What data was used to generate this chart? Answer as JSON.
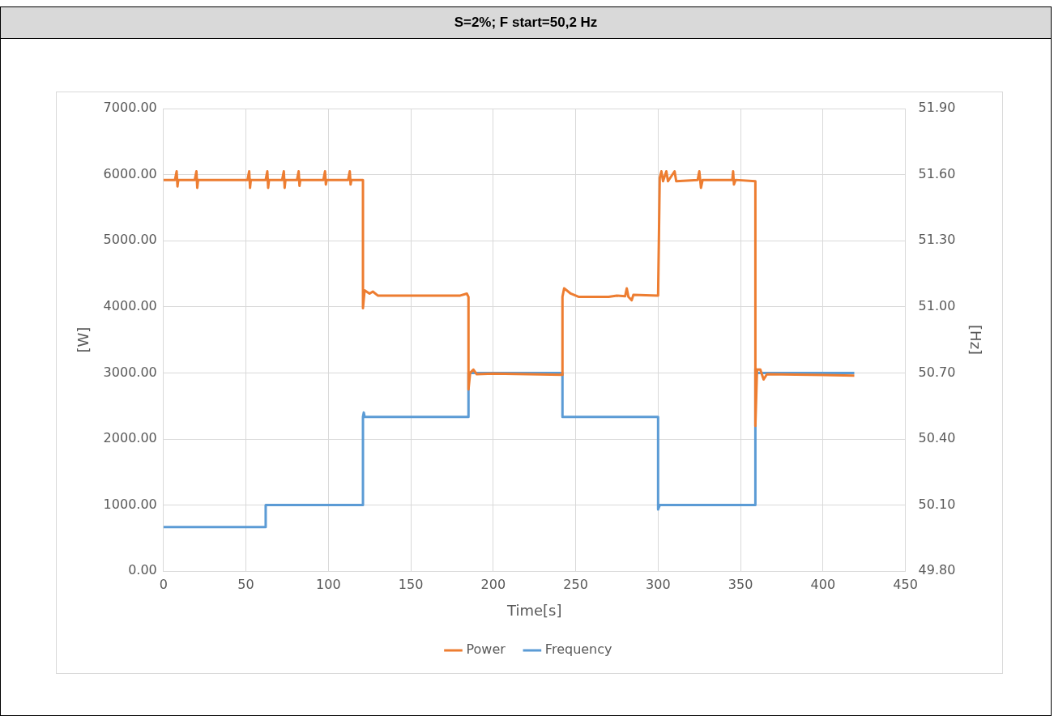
{
  "chart_data": {
    "type": "line",
    "title": "S=2%; F start=50,2 Hz",
    "xlabel": "Time[s]",
    "ylabel": "[W]",
    "y2label": "[Hz]",
    "xlim": [
      0,
      450
    ],
    "xticks": [
      0,
      50,
      100,
      150,
      200,
      250,
      300,
      350,
      400,
      450
    ],
    "ylim": [
      0,
      7000
    ],
    "yticks": [
      {
        "value": 0,
        "label": "0.00"
      },
      {
        "value": 1000,
        "label": "1000.00"
      },
      {
        "value": 2000,
        "label": "2000.00"
      },
      {
        "value": 3000,
        "label": "3000.00"
      },
      {
        "value": 4000,
        "label": "4000.00"
      },
      {
        "value": 5000,
        "label": "5000.00"
      },
      {
        "value": 6000,
        "label": "6000.00"
      },
      {
        "value": 7000,
        "label": "7000.00"
      }
    ],
    "y2lim": [
      49.8,
      51.9
    ],
    "y2ticks": [
      {
        "value": 49.8,
        "label": "49.80"
      },
      {
        "value": 50.1,
        "label": "50.10"
      },
      {
        "value": 50.4,
        "label": "50.40"
      },
      {
        "value": 50.7,
        "label": "50.70"
      },
      {
        "value": 51.0,
        "label": "51.00"
      },
      {
        "value": 51.3,
        "label": "51.30"
      },
      {
        "value": 51.6,
        "label": "51.60"
      },
      {
        "value": 51.9,
        "label": "51.90"
      }
    ],
    "grid": true,
    "legend": "bottom",
    "marker": "none",
    "line_style": "solid",
    "series": [
      {
        "name": "Power",
        "color": "#ed7d31",
        "x": [
          0,
          7,
          8,
          8.5,
          9,
          19,
          20,
          20.5,
          21,
          51,
          52,
          52.5,
          53,
          62,
          63,
          63.5,
          64,
          72,
          73,
          73.5,
          74,
          81,
          82,
          82.5,
          83,
          97,
          98,
          98.5,
          99,
          112,
          113,
          113.5,
          114,
          121,
          121,
          122,
          125,
          127,
          130,
          160,
          180,
          184,
          185,
          185,
          186,
          188,
          190,
          200,
          242,
          242,
          243,
          247,
          252,
          270,
          275,
          280,
          281,
          282,
          284,
          285,
          300,
          301,
          302,
          303,
          305,
          306,
          310,
          311,
          324,
          325,
          326,
          327,
          345,
          345.5,
          346,
          347,
          359,
          359,
          360,
          362,
          364,
          366,
          419
        ],
        "values": [
          5920,
          5920,
          6050,
          5820,
          5920,
          5920,
          6050,
          5800,
          5920,
          5920,
          6050,
          5800,
          5920,
          5920,
          6050,
          5800,
          5920,
          5920,
          6050,
          5800,
          5920,
          5920,
          6050,
          5830,
          5920,
          5920,
          6050,
          5850,
          5920,
          5920,
          6050,
          5850,
          5920,
          5920,
          3980,
          4250,
          4200,
          4230,
          4170,
          4170,
          4170,
          4200,
          4150,
          2750,
          3000,
          3050,
          2980,
          2990,
          2970,
          4150,
          4280,
          4200,
          4150,
          4150,
          4170,
          4160,
          4280,
          4150,
          4100,
          4180,
          4170,
          5950,
          6050,
          5900,
          6050,
          5900,
          6050,
          5900,
          5920,
          6050,
          5800,
          5920,
          5920,
          6050,
          5850,
          5920,
          5900,
          2200,
          3050,
          3050,
          2900,
          2980,
          2960
        ]
      },
      {
        "name": "Frequency",
        "color": "#5b9bd5",
        "axis": "y2",
        "x": [
          0,
          62,
          62,
          121,
          121,
          121.5,
          122,
          185,
          185,
          242,
          242,
          300,
          300,
          301,
          359,
          359,
          360,
          419
        ],
        "values": [
          50.0,
          50.0,
          50.1,
          50.1,
          50.5,
          50.52,
          50.5,
          50.5,
          50.7,
          50.7,
          50.5,
          50.5,
          50.08,
          50.1,
          50.1,
          50.72,
          50.7,
          50.7
        ]
      }
    ]
  }
}
